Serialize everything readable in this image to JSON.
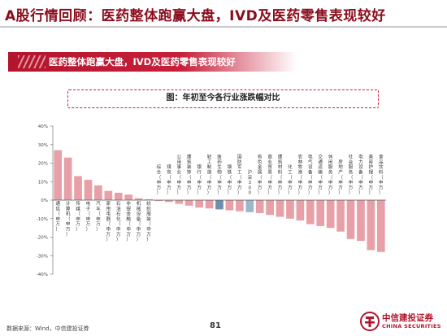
{
  "page": {
    "title": "A股行情回顾：医药整体跑赢大盘，IVD及医药零售表现较好",
    "banner": "医药整体跑赢大盘，IVD及医药零售表现较好",
    "footnote": "数据来源：Wind，中信建投证券",
    "page_number": "81"
  },
  "brand": {
    "name_cn": "中信建投证券",
    "name_en": "CHINA SECURITIES",
    "primary_color": "#b3152c"
  },
  "chart_data": {
    "type": "bar",
    "title": "图：年初至今各行业涨跌幅对比",
    "xlabel": "",
    "ylabel": "",
    "ylim": [
      -40,
      40
    ],
    "yticks": [
      "40%",
      "30%",
      "20%",
      "10%",
      "0%",
      "-10%",
      "-20%",
      "-30%",
      "-40%"
    ],
    "grid": false,
    "legend": "none",
    "categories": [
      "通信（申万）",
      "计算机（申万）",
      "传媒（申万）",
      "电子（申万）",
      "汽车（申万）",
      "家用电器（申万）",
      "石油石化（申万）",
      "非银金融（申万）",
      "机械设备（申万）",
      "纺织服装（申万）",
      "综合（申万）",
      "煤炭（申万）",
      "公用事业（申万）",
      "建筑装饰（申万）",
      "银行（申万）",
      "轻工制造（申万）",
      "医药生物（申万）",
      "钢铁（申万）",
      "国防军工（申万）",
      "沪深300",
      "有色金属（申万）",
      "商业贸易（申万）",
      "建筑材料（申万）",
      "化工（申万）",
      "农林牧渔（申万）",
      "电气设备（申万）",
      "交通运输（申万）",
      "休闲服务（申万）",
      "房地产（申万）",
      "社会服务（申万）",
      "电力设备（申万）",
      "美容护理（申万）",
      "食品饮料（申万）"
    ],
    "values": [
      27,
      23,
      13,
      11,
      8,
      5,
      4,
      3,
      1,
      0.5,
      -0.5,
      -1,
      -2,
      -3,
      -4,
      -4.5,
      -5,
      -5.5,
      -6,
      -6.5,
      -7,
      -8,
      -9,
      -10,
      -11,
      -13,
      -14,
      -15,
      -17,
      -21,
      -22,
      -27,
      -28
    ],
    "bar_colors": [
      "#e8a0a8",
      "#e8a0a8",
      "#e8a0a8",
      "#e8a0a8",
      "#e8a0a8",
      "#e8a0a8",
      "#e8a0a8",
      "#e8a0a8",
      "#e8a0a8",
      "#e8a0a8",
      "#e8a0a8",
      "#e8a0a8",
      "#e8a0a8",
      "#e8a0a8",
      "#e8a0a8",
      "#e8a0a8",
      "#6f8fad",
      "#e8a0a8",
      "#e8a0a8",
      "#9cb6cf",
      "#e8a0a8",
      "#e8a0a8",
      "#e8a0a8",
      "#e8a0a8",
      "#e8a0a8",
      "#e8a0a8",
      "#e8a0a8",
      "#e8a0a8",
      "#e8a0a8",
      "#e8a0a8",
      "#e8a0a8",
      "#e8a0a8",
      "#e8a0a8"
    ]
  }
}
